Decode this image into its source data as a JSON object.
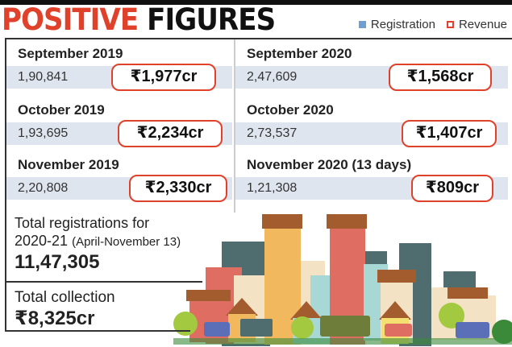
{
  "title": {
    "part1": "POSITIVE",
    "part2": "FIGURES"
  },
  "legend": [
    {
      "label": "Registration",
      "color": "#6f9fd0"
    },
    {
      "label": "Revenue",
      "color": "#e0412b"
    }
  ],
  "months": [
    {
      "label": "September 2019",
      "registrations": "1,90,841",
      "revenue": "₹1,977cr"
    },
    {
      "label": "September 2020",
      "registrations": "2,47,609",
      "revenue": "₹1,568cr"
    },
    {
      "label": "October 2019",
      "registrations": "1,93,695",
      "revenue": "₹2,234cr"
    },
    {
      "label": "October 2020",
      "registrations": "2,73,537",
      "revenue": "₹1,407cr"
    },
    {
      "label": "November 2019",
      "registrations": "2,20,808",
      "revenue": "₹2,330cr"
    },
    {
      "label": "November 2020 (13 days)",
      "registrations": "1,21,308",
      "revenue": "₹809cr"
    }
  ],
  "total_registrations": {
    "label1": "Total registrations for",
    "label2": "2020-21",
    "period": "(April-November 13)",
    "value": "11,47,305"
  },
  "total_collection": {
    "label": "Total collection",
    "value": "₹8,325cr"
  },
  "illustration": "city-skyline-icon"
}
